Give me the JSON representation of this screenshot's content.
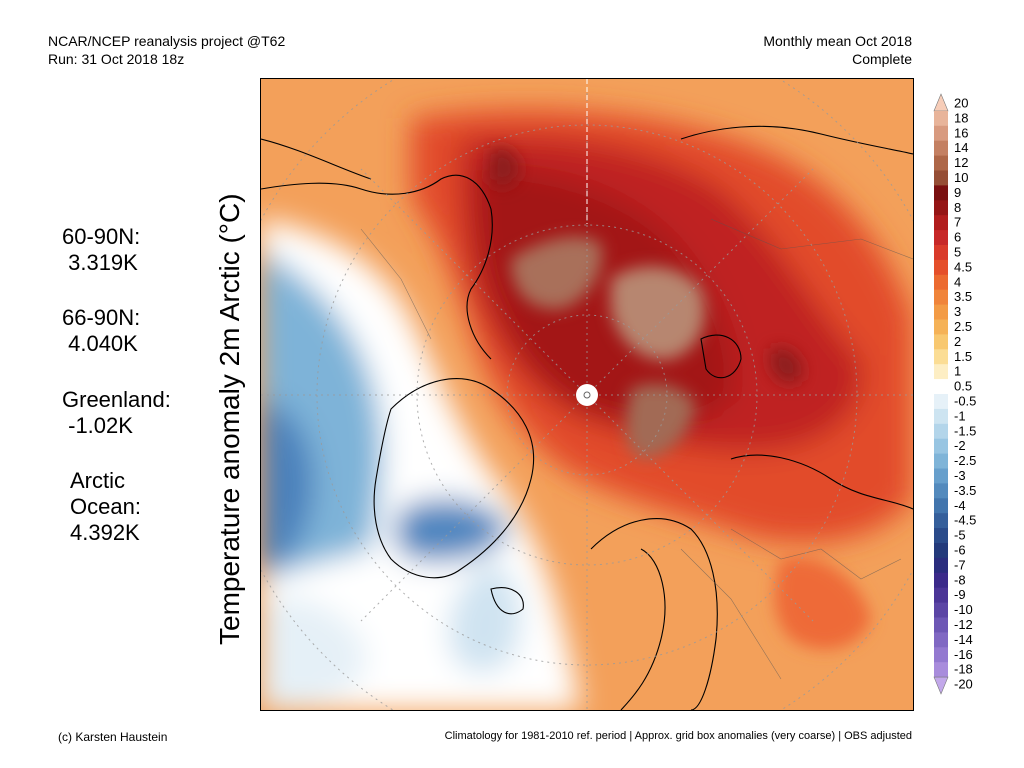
{
  "header": {
    "project": "NCAR/NCEP reanalysis project @T62",
    "run": "Run: 31 Oct 2018 18z",
    "period": "Monthly mean Oct 2018",
    "status": "Complete"
  },
  "vertical_title": "Temperature anomaly 2m Arctic (°C)",
  "stats": [
    {
      "label": "60-90N:",
      "value": " 3.319K"
    },
    {
      "label": "66-90N:",
      "value": " 4.040K"
    },
    {
      "label": "Greenland:",
      "value": " -1.02K"
    },
    {
      "label": "Arctic",
      "label2": "Ocean:",
      "value": "4.392K"
    }
  ],
  "colorbar": {
    "labels": [
      "20",
      "18",
      "16",
      "14",
      "12",
      "10",
      "9",
      "8",
      "7",
      "6",
      "5",
      "4.5",
      "4",
      "3.5",
      "3",
      "2.5",
      "2",
      "1.5",
      "1",
      "0.5",
      "-0.5",
      "-1",
      "-1.5",
      "-2",
      "-2.5",
      "-3",
      "-3.5",
      "-4",
      "-4.5",
      "-5",
      "-6",
      "-7",
      "-8",
      "-9",
      "-10",
      "-12",
      "-14",
      "-16",
      "-18",
      "-20"
    ],
    "colors": [
      "#f7cdb8",
      "#e8b49a",
      "#d89a7f",
      "#c48062",
      "#ae6748",
      "#964e35",
      "#7a1010",
      "#951515",
      "#b11d1d",
      "#c72828",
      "#d93a2a",
      "#e54f2a",
      "#ec6a30",
      "#f0843a",
      "#f39b45",
      "#f5b257",
      "#f8c870",
      "#fbdd95",
      "#fdeec4",
      "#ffffff",
      "#e6f1f8",
      "#cde4f1",
      "#b3d5ea",
      "#98c5e2",
      "#7fb4d8",
      "#679fcc",
      "#538abd",
      "#4275ad",
      "#355f9b",
      "#2a4b8a",
      "#233a7b",
      "#2a2d7e",
      "#3b2a8a",
      "#4b3597",
      "#5b45a5",
      "#6d57b5",
      "#8068c3",
      "#9379d0",
      "#a88cdc",
      "#c2a8ea"
    ]
  },
  "footer": {
    "credit": "(c) Karsten Haustein",
    "note": "Climatology for 1981-2010 ref. period | Approx. grid box anomalies (very coarse) | OBS adjusted"
  }
}
